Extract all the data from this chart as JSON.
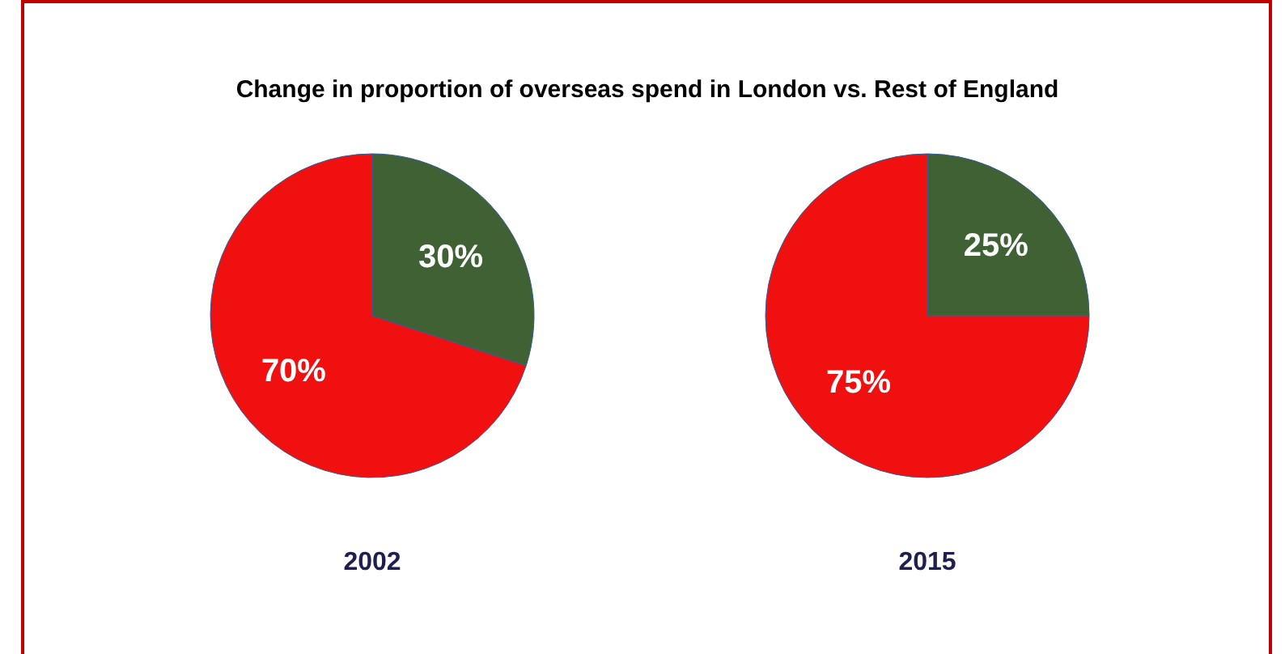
{
  "chart_data": [
    {
      "type": "pie",
      "title": "Change in proportion of overseas spend in London vs. Rest of England",
      "xlabel": "2002",
      "categories": [
        null,
        null
      ],
      "values": [
        30,
        70
      ],
      "colors": [
        "#3f6134",
        "#f01010"
      ],
      "value_labels": [
        "30%",
        "70%"
      ]
    },
    {
      "type": "pie",
      "xlabel": "2015",
      "categories": [
        null,
        null
      ],
      "values": [
        25,
        75
      ],
      "colors": [
        "#3f6134",
        "#f01010"
      ],
      "value_labels": [
        "25%",
        "75%"
      ]
    }
  ]
}
